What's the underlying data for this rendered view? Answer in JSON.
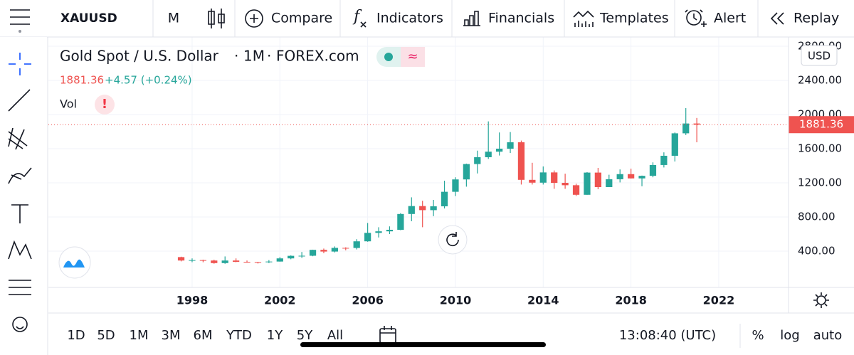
{
  "toolbar": {
    "symbol": "XAUUSD",
    "interval": "M",
    "items": [
      "Compare",
      "Indicators",
      "Financials",
      "Templates",
      "Alert",
      "Replay"
    ]
  },
  "chart_data": {
    "type": "candlestick",
    "title": "Gold Spot / U.S. Dollar",
    "interval": "1M",
    "source": "FOREX.com",
    "change": "+4.57 (+0.24%)",
    "volume_label": "Vol",
    "currency": "USD",
    "up_color": "#26a69a",
    "down_color": "#ef5350",
    "x": [
      1997.5,
      1998.0,
      1998.5,
      1999.0,
      1999.5,
      2000.0,
      2000.5,
      2001.0,
      2001.5,
      2002.0,
      2002.5,
      2003.0,
      2003.5,
      2004.0,
      2004.5,
      2005.0,
      2005.5,
      2006.0,
      2006.5,
      2007.0,
      2007.5,
      2008.0,
      2008.5,
      2009.0,
      2009.5,
      2010.0,
      2010.5,
      2011.0,
      2011.5,
      2012.0,
      2012.5,
      2013.0,
      2013.5,
      2014.0,
      2014.5,
      2015.0,
      2015.5,
      2016.0,
      2016.5,
      2017.0,
      2017.5,
      2018.0,
      2018.5,
      2019.0,
      2019.5,
      2020.0,
      2020.5,
      2021.0
    ],
    "open": [
      330,
      290,
      295,
      290,
      260,
      290,
      275,
      272,
      270,
      278,
      315,
      345,
      346,
      415,
      395,
      438,
      437,
      515,
      614,
      632,
      650,
      835,
      928,
      880,
      925,
      1095,
      1240,
      1420,
      1500,
      1565,
      1600,
      1675,
      1235,
      1202,
      1322,
      1200,
      1172,
      1060,
      1320,
      1150,
      1242,
      1302,
      1252,
      1282,
      1409,
      1517,
      1780,
      1895
    ],
    "high": [
      335,
      315,
      300,
      300,
      338,
      315,
      290,
      275,
      295,
      330,
      350,
      390,
      417,
      430,
      455,
      445,
      540,
      730,
      680,
      690,
      845,
      1030,
      990,
      1000,
      1225,
      1265,
      1425,
      1577,
      1920,
      1790,
      1795,
      1695,
      1435,
      1392,
      1345,
      1307,
      1190,
      1325,
      1375,
      1295,
      1357,
      1366,
      1285,
      1440,
      1557,
      1790,
      2075,
      1960
    ],
    "low": [
      280,
      270,
      270,
      253,
      252,
      270,
      265,
      255,
      260,
      277,
      305,
      320,
      340,
      375,
      385,
      410,
      420,
      510,
      560,
      600,
      645,
      750,
      680,
      810,
      900,
      1045,
      1155,
      1310,
      1480,
      1520,
      1550,
      1180,
      1180,
      1180,
      1130,
      1130,
      1046,
      1060,
      1125,
      1150,
      1205,
      1250,
      1160,
      1265,
      1380,
      1450,
      1760,
      1675
    ],
    "close": [
      290,
      295,
      290,
      260,
      290,
      275,
      272,
      270,
      278,
      315,
      345,
      346,
      415,
      395,
      438,
      437,
      515,
      614,
      632,
      650,
      835,
      928,
      880,
      925,
      1095,
      1240,
      1420,
      1500,
      1565,
      1600,
      1675,
      1235,
      1202,
      1322,
      1200,
      1172,
      1060,
      1320,
      1150,
      1242,
      1302,
      1252,
      1282,
      1409,
      1517,
      1780,
      1895,
      1881.36
    ],
    "xlim": [
      1991.45,
      2025.18
    ],
    "xticks": [
      1998,
      2002,
      2006,
      2010,
      2014,
      2018,
      2022
    ],
    "ylim": [
      0,
      2800
    ],
    "yticks": [
      {
        "value": 400,
        "label": "400.00"
      },
      {
        "value": 800,
        "label": "800.00"
      },
      {
        "value": 1200,
        "label": "1200.00"
      },
      {
        "value": 1600,
        "label": "1600.00"
      },
      {
        "value": 2000,
        "label": "2000.00"
      },
      {
        "value": 2400,
        "label": "2400.00"
      },
      {
        "value": 2800,
        "label": "2800.00"
      }
    ],
    "grid": true
  },
  "bottom_bar": {
    "ranges": [
      "1D",
      "5D",
      "1M",
      "3M",
      "6M",
      "YTD",
      "1Y",
      "5Y",
      "All"
    ],
    "clock": "13:08:40 (UTC)",
    "options": [
      "%",
      "log",
      "auto"
    ]
  }
}
